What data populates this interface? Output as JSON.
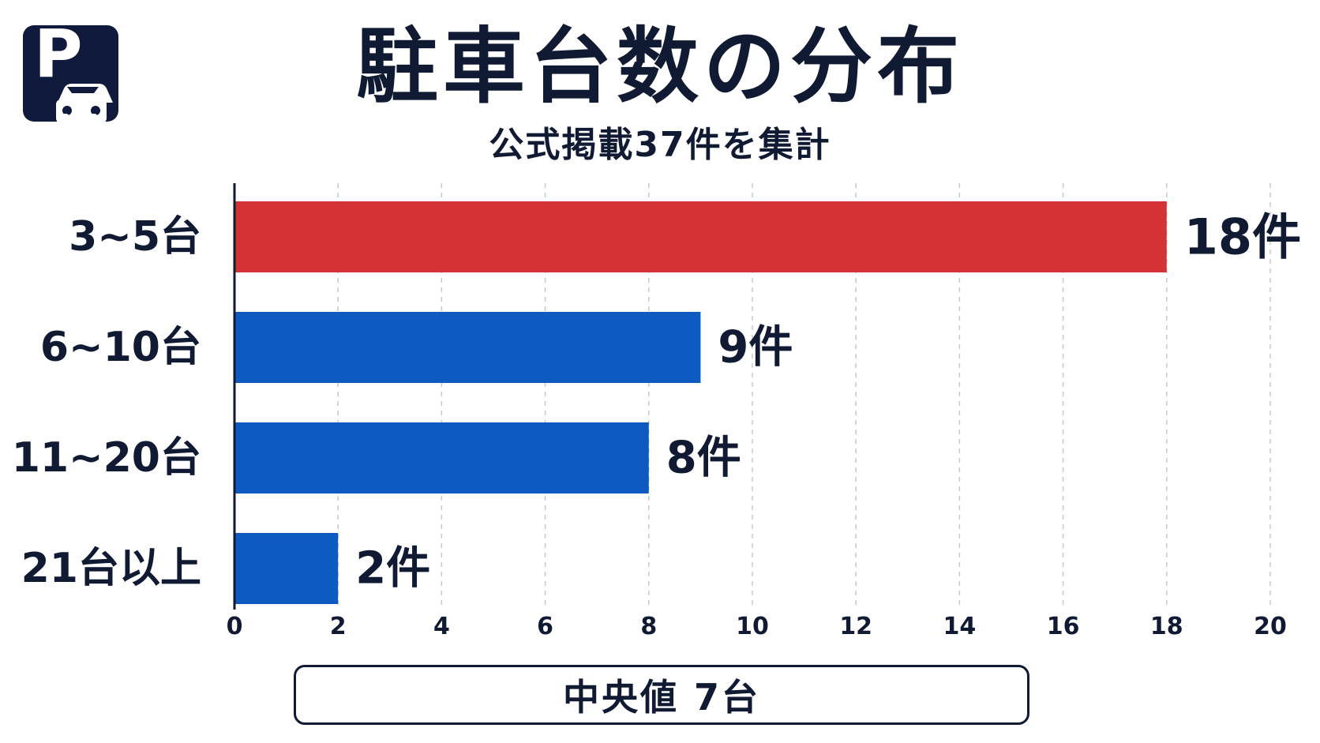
{
  "header": {
    "title": "駐車台数の分布",
    "subtitle": "公式掲載37件を集計",
    "logo_letter": "P",
    "logo_icon": "parking-car-icon"
  },
  "footer": {
    "median_label": "中央値 7台"
  },
  "colors": {
    "highlight": "#d43234",
    "bar": "#0d5bc1",
    "text": "#111a33",
    "grid": "#c8c8c8"
  },
  "chart_data": {
    "type": "bar",
    "orientation": "horizontal",
    "title": "駐車台数の分布",
    "subtitle": "公式掲載37件を集計",
    "categories": [
      "3~5台",
      "6~10台",
      "11~20台",
      "21台以上"
    ],
    "values": [
      18,
      9,
      8,
      2
    ],
    "value_labels": [
      "18件",
      "9件",
      "8件",
      "2件"
    ],
    "highlight_index": 0,
    "xlim": [
      0,
      20
    ],
    "xticks": [
      0,
      2,
      4,
      6,
      8,
      10,
      12,
      14,
      16,
      18,
      20
    ],
    "grid": "vertical-dashed",
    "legend": "none"
  }
}
